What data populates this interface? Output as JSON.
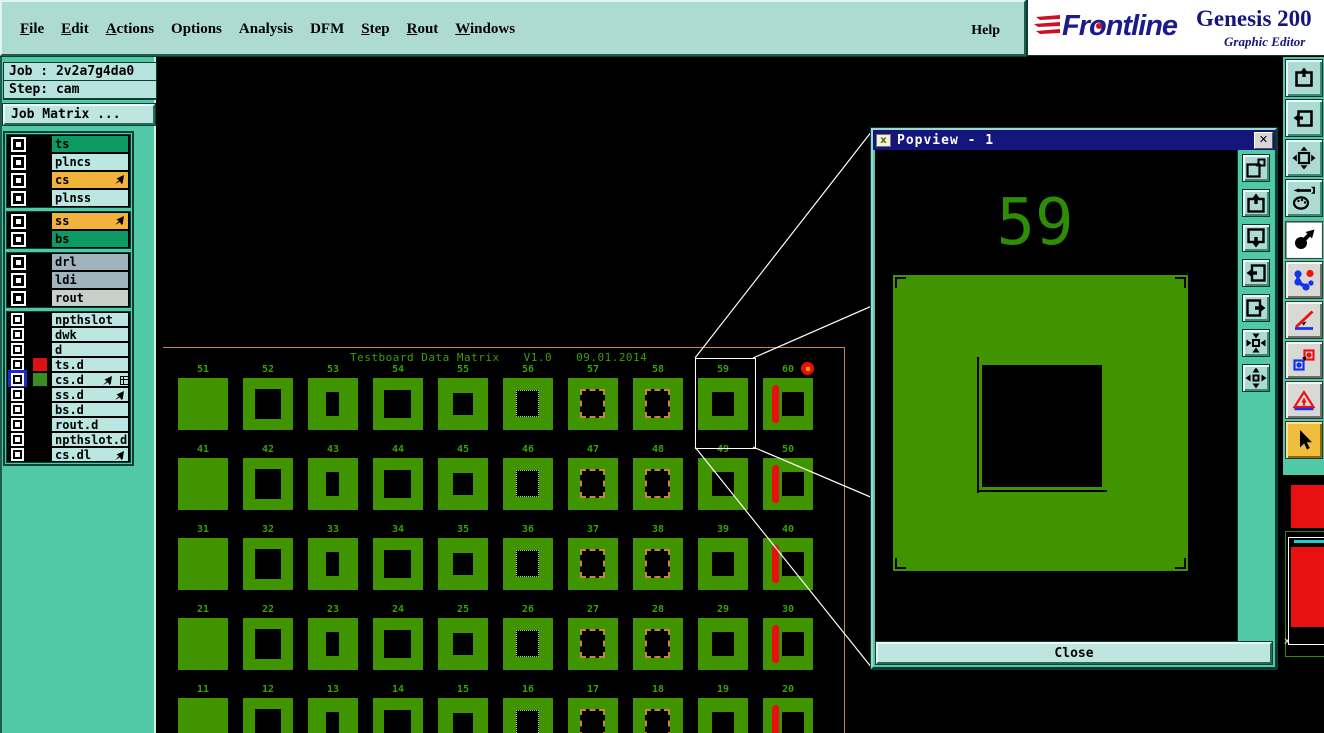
{
  "app": {
    "menus": [
      {
        "label": "File",
        "underline_first": true
      },
      {
        "label": "Edit",
        "underline_first": true
      },
      {
        "label": "Actions",
        "underline_first": true
      },
      {
        "label": "Options",
        "underline_first": false
      },
      {
        "label": "Analysis",
        "underline_first": false
      },
      {
        "label": "DFM",
        "underline_first": false
      },
      {
        "label": "Step",
        "underline_first": true
      },
      {
        "label": "Rout",
        "underline_first": true
      },
      {
        "label": "Windows",
        "underline_first": true
      }
    ],
    "help_label": "Help",
    "brand": {
      "name": "Frontline",
      "product": "Genesis 200",
      "subtitle": "Graphic Editor"
    }
  },
  "job_panel": {
    "job_label": "Job : 2v2a7g4da0",
    "step_label": "Step: cam",
    "matrix_button": "Job Matrix ..."
  },
  "layers": {
    "groups": [
      {
        "small": false,
        "rows": [
          {
            "name": "ts",
            "color": "green"
          },
          {
            "name": "plncs",
            "color": "cyan"
          },
          {
            "name": "cs",
            "color": "orange",
            "icons": [
              "nib"
            ]
          },
          {
            "name": "plnss",
            "color": "cyan"
          }
        ]
      },
      {
        "small": false,
        "rows": [
          {
            "name": "ss",
            "color": "orange",
            "icons": [
              "nib"
            ]
          },
          {
            "name": "bs",
            "color": "green"
          }
        ]
      },
      {
        "small": false,
        "rows": [
          {
            "name": "drl",
            "color": "slate"
          },
          {
            "name": "ldi",
            "color": "slate"
          },
          {
            "name": "rout",
            "color": "silver"
          }
        ]
      },
      {
        "small": true,
        "rows": [
          {
            "name": "npthslot",
            "color": "cyan"
          },
          {
            "name": "dwk",
            "color": "cyan"
          },
          {
            "name": "d",
            "color": "cyan"
          },
          {
            "name": "ts.d",
            "color": "cyan",
            "swatch": "#DD1111"
          },
          {
            "name": "cs.d",
            "color": "cyan",
            "swatch": "#3A8E20",
            "selected": true,
            "icons": [
              "nib",
              "grid"
            ]
          },
          {
            "name": "ss.d",
            "color": "cyan",
            "icons": [
              "nib"
            ]
          },
          {
            "name": "bs.d",
            "color": "cyan"
          },
          {
            "name": "rout.d",
            "color": "cyan"
          },
          {
            "name": "npthslot.d",
            "color": "cyan"
          },
          {
            "name": "cs.dl",
            "color": "cyan",
            "icons": [
              "nib"
            ]
          }
        ]
      }
    ],
    "row_colors": {
      "green": "#0E9B63",
      "cyan": "#BCE6E2",
      "orange": "#F2B33D",
      "slate": "#9FB4BC",
      "silver": "#C9CFCB"
    }
  },
  "canvas": {
    "title": "Testboard Data Matrix",
    "version": "V1.0",
    "date": "09.01.2014",
    "rows": [
      [
        51,
        52,
        53,
        54,
        55,
        56,
        57,
        58,
        59,
        60
      ],
      [
        41,
        42,
        43,
        44,
        45,
        46,
        47,
        48,
        49,
        50
      ],
      [
        31,
        32,
        33,
        34,
        35,
        36,
        37,
        38,
        39,
        40
      ],
      [
        21,
        22,
        23,
        24,
        25,
        26,
        27,
        28,
        29,
        30
      ],
      [
        11,
        12,
        13,
        14,
        15,
        16,
        17,
        18,
        19,
        20
      ]
    ],
    "column_patterns": [
      "solid",
      "square-hole",
      "small-slot",
      "square-hole-large",
      "square-hole-medium",
      "dotted-outline-hole",
      "gold-dashed-hole",
      "gold-dashed-hole-alt",
      "square-hole-small",
      "red-bar-hole"
    ],
    "selected_cell": 59,
    "red_marker_cell": 60
  },
  "popview": {
    "title": "Popview - 1",
    "cell_label": "59",
    "close_label": "Close",
    "toolbar_icons": [
      "window-copy",
      "pan-up",
      "pan-down",
      "pan-left",
      "pan-right",
      "zoom-fit-in",
      "zoom-fit-out"
    ]
  },
  "right_toolbar": {
    "buttons": [
      {
        "icon": "view-window-up",
        "bg": "teal"
      },
      {
        "icon": "view-window-left",
        "bg": "teal"
      },
      {
        "icon": "view-fit",
        "bg": "teal"
      },
      {
        "icon": "tools-palette",
        "bg": "teal"
      },
      {
        "icon": "feature-select",
        "bg": "white"
      },
      {
        "icon": "netlist",
        "bg": "gray"
      },
      {
        "icon": "measure-angle",
        "bg": "gray"
      },
      {
        "icon": "compare-shapes",
        "bg": "gray"
      },
      {
        "icon": "dfm-triangle",
        "bg": "gray"
      },
      {
        "icon": "cursor",
        "bg": "orange"
      }
    ]
  },
  "colors": {
    "canvas-green": "#3F9400",
    "alert-red": "#E81010",
    "profile-gold": "#C8853C",
    "sidebar-teal": "#52C9A6",
    "panel-teal": "#AEDAD4",
    "navy": "#15157E",
    "tool-orange": "#F0BE3C"
  }
}
